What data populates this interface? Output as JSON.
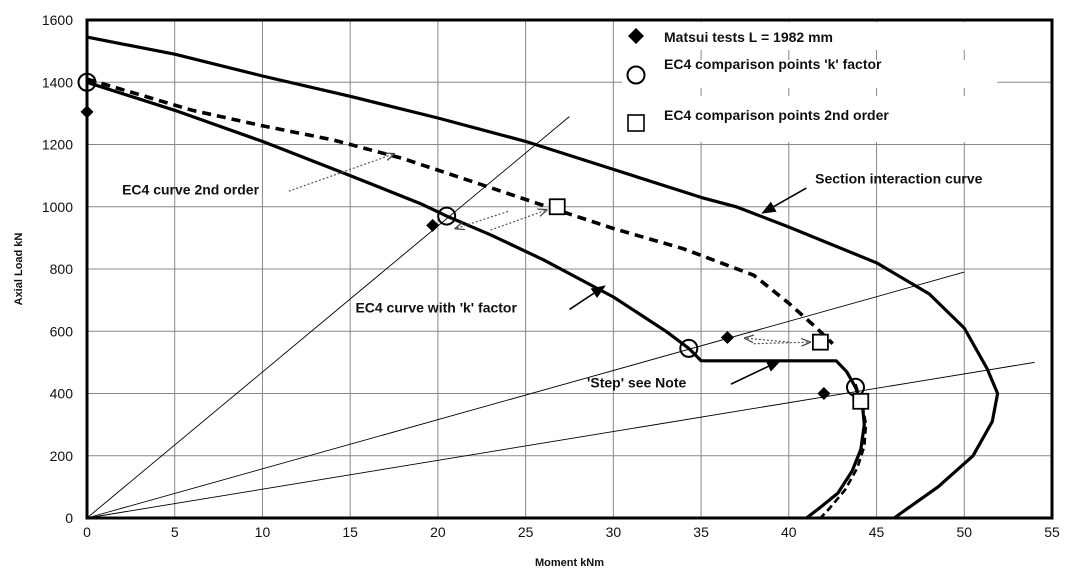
{
  "chart_data": {
    "type": "line",
    "xlabel": "Moment  kNm",
    "ylabel": "Axial Load  kN",
    "xlim": [
      0,
      55
    ],
    "ylim": [
      0,
      1600
    ],
    "x_ticks": [
      0,
      5,
      10,
      15,
      20,
      25,
      30,
      35,
      40,
      45,
      50,
      55
    ],
    "y_ticks": [
      0,
      200,
      400,
      600,
      800,
      1000,
      1200,
      1400,
      1600
    ],
    "grid": true,
    "legend_position": "top-right",
    "legend": [
      {
        "key": "matsui",
        "label": "Matsui tests  L = 1982 mm"
      },
      {
        "key": "kfactor_pts",
        "label": "EC4 comparison points 'k' factor"
      },
      {
        "key": "second_order_pts",
        "label": "EC4 comparison points 2nd order"
      }
    ],
    "series": [
      {
        "key": "section",
        "points": [
          [
            0,
            1545
          ],
          [
            5,
            1490
          ],
          [
            10,
            1420
          ],
          [
            15,
            1355
          ],
          [
            20,
            1285
          ],
          [
            25,
            1210
          ],
          [
            30,
            1120
          ],
          [
            35,
            1030
          ],
          [
            37,
            1000
          ],
          [
            40,
            935
          ],
          [
            45,
            820
          ],
          [
            48,
            720
          ],
          [
            50,
            610
          ],
          [
            51.3,
            480
          ],
          [
            51.9,
            400
          ],
          [
            51.6,
            310
          ],
          [
            50.5,
            200
          ],
          [
            48.5,
            100
          ],
          [
            46,
            0
          ]
        ]
      },
      {
        "key": "kfactor_curve",
        "points": [
          [
            0,
            1400
          ],
          [
            5,
            1310
          ],
          [
            10,
            1210
          ],
          [
            15,
            1100
          ],
          [
            19,
            1010
          ],
          [
            20.5,
            970
          ],
          [
            23,
            910
          ],
          [
            26,
            830
          ],
          [
            30,
            710
          ],
          [
            33,
            600
          ],
          [
            34.3,
            545
          ],
          [
            35,
            505
          ],
          [
            37,
            505
          ],
          [
            40,
            505
          ],
          [
            42.7,
            505
          ],
          [
            43.3,
            470
          ],
          [
            43.8,
            420
          ],
          [
            44.2,
            360
          ],
          [
            44.3,
            300
          ],
          [
            44.1,
            220
          ],
          [
            43.6,
            150
          ],
          [
            42.8,
            80
          ],
          [
            41.7,
            30
          ],
          [
            41,
            0
          ]
        ]
      },
      {
        "key": "second_order_curve",
        "points": [
          [
            0,
            1410
          ],
          [
            3,
            1360
          ],
          [
            6,
            1310
          ],
          [
            10,
            1260
          ],
          [
            14,
            1215
          ],
          [
            18,
            1155
          ],
          [
            22,
            1080
          ],
          [
            26.5,
            995
          ],
          [
            30,
            930
          ],
          [
            34,
            865
          ],
          [
            38,
            780
          ],
          [
            40,
            690
          ],
          [
            41.5,
            615
          ],
          [
            42.5,
            560
          ]
        ]
      },
      {
        "key": "second_order_lower",
        "points": [
          [
            43.8,
            430
          ],
          [
            44.2,
            360
          ],
          [
            44.4,
            300
          ],
          [
            44.3,
            230
          ],
          [
            43.9,
            160
          ],
          [
            43.2,
            90
          ],
          [
            42.3,
            30
          ],
          [
            41.8,
            0
          ]
        ]
      },
      {
        "key": "ray_steep",
        "points": [
          [
            0,
            0
          ],
          [
            27.5,
            1290
          ]
        ]
      },
      {
        "key": "ray_mid",
        "points": [
          [
            0,
            0
          ],
          [
            50,
            790
          ]
        ]
      },
      {
        "key": "ray_low",
        "points": [
          [
            0,
            0
          ],
          [
            54,
            500
          ]
        ]
      },
      {
        "key": "matsui",
        "points": [
          [
            0,
            1305
          ],
          [
            19.7,
            940
          ],
          [
            36.5,
            580
          ],
          [
            42,
            400
          ]
        ]
      },
      {
        "key": "kfactor_pts",
        "points": [
          [
            0,
            1400
          ],
          [
            20.5,
            970
          ],
          [
            34.3,
            545
          ],
          [
            43.8,
            420
          ]
        ]
      },
      {
        "key": "second_order_pts",
        "points": [
          [
            26.8,
            1000
          ],
          [
            41.8,
            565
          ],
          [
            44.1,
            375
          ]
        ]
      }
    ],
    "annotations": [
      {
        "key": "ec4_2nd",
        "text": "EC4 curve 2nd order",
        "x": 2,
        "y": 1040
      },
      {
        "key": "ec4_k",
        "text": "EC4 curve with 'k' factor",
        "x": 15.3,
        "y": 660
      },
      {
        "key": "section",
        "text": "Section interaction curve",
        "x": 41.5,
        "y": 1075
      },
      {
        "key": "step",
        "text": "'Step'  see Note",
        "x": 28.5,
        "y": 420
      }
    ],
    "arrows": [
      {
        "key": "arrow-ec4-2nd",
        "from": [
          11.5,
          1050
        ],
        "to": [
          17.5,
          1170
        ],
        "style": "dotted"
      },
      {
        "key": "arrow-section",
        "from": [
          41,
          1060
        ],
        "to": [
          38.5,
          980
        ],
        "style": "solid"
      },
      {
        "key": "arrow-kfactor",
        "from": [
          27.5,
          670
        ],
        "to": [
          29.5,
          745
        ],
        "style": "solid"
      },
      {
        "key": "arrow-step",
        "from": [
          36.7,
          430
        ],
        "to": [
          39.5,
          505
        ],
        "style": "solid"
      },
      {
        "key": "compare-top-a",
        "from": [
          24,
          985
        ],
        "to": [
          21,
          930
        ],
        "style": "dotted"
      },
      {
        "key": "compare-top-b",
        "from": [
          23,
          925
        ],
        "to": [
          26.2,
          990
        ],
        "style": "dotted"
      },
      {
        "key": "compare-mid-a",
        "from": [
          40,
          565
        ],
        "to": [
          37.5,
          578
        ],
        "style": "dotted"
      },
      {
        "key": "compare-mid-b",
        "from": [
          38,
          560
        ],
        "to": [
          41.2,
          565
        ],
        "style": "dotted"
      }
    ]
  }
}
